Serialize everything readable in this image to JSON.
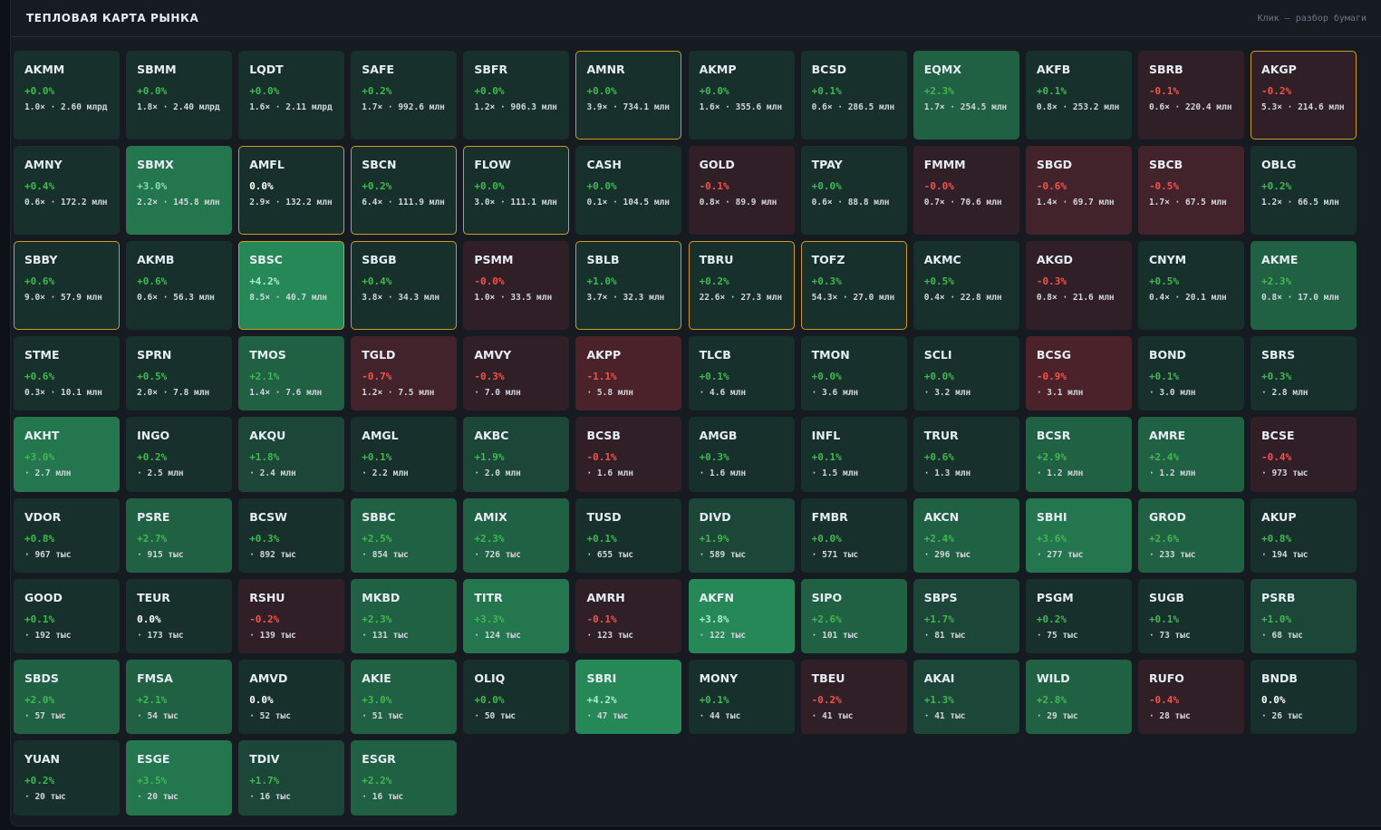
{
  "header": {
    "title": "ТЕПЛОВАЯ КАРТА РЫНКА",
    "hint": "Клик — разбор бумаги"
  },
  "colors": {
    "positive": "#3fb950",
    "negative": "#f85149",
    "highlight_border": "#d29922",
    "tile_neutral_green": "#1c3a32",
    "tile_strong_green": "#1f8a5a",
    "tile_red": "#3a1f25"
  },
  "tiles": [
    {
      "ticker": "AKMM",
      "change": "+0.0%",
      "volume": "1.0× · 2.60 млрд",
      "shade": 1,
      "dir": "pos",
      "hl": false
    },
    {
      "ticker": "SBMM",
      "change": "+0.0%",
      "volume": "1.8× · 2.40 млрд",
      "shade": 1,
      "dir": "pos",
      "hl": false
    },
    {
      "ticker": "LQDT",
      "change": "+0.0%",
      "volume": "1.6× · 2.11 млрд",
      "shade": 1,
      "dir": "pos",
      "hl": false
    },
    {
      "ticker": "SAFE",
      "change": "+0.2%",
      "volume": "1.7× · 992.6 млн",
      "shade": 1,
      "dir": "pos",
      "hl": false
    },
    {
      "ticker": "SBFR",
      "change": "+0.0%",
      "volume": "1.2× · 906.3 млн",
      "shade": 1,
      "dir": "pos",
      "hl": false
    },
    {
      "ticker": "AMNR",
      "change": "+0.0%",
      "volume": "3.9× · 734.1 млн",
      "shade": 1,
      "dir": "pos",
      "hl": true
    },
    {
      "ticker": "AKMP",
      "change": "+0.0%",
      "volume": "1.6× · 355.6 млн",
      "shade": 1,
      "dir": "pos",
      "hl": false
    },
    {
      "ticker": "BCSD",
      "change": "+0.1%",
      "volume": "0.6× · 286.5 млн",
      "shade": 1,
      "dir": "pos",
      "hl": false
    },
    {
      "ticker": "EQMX",
      "change": "+2.3%",
      "volume": "1.7× · 254.5 млн",
      "shade": 3,
      "dir": "pos",
      "hl": false
    },
    {
      "ticker": "AKFB",
      "change": "+0.1%",
      "volume": "0.8× · 253.2 млн",
      "shade": 1,
      "dir": "pos",
      "hl": false
    },
    {
      "ticker": "SBRB",
      "change": "-0.1%",
      "volume": "0.6× · 220.4 млн",
      "shade": -1,
      "dir": "neg",
      "hl": false
    },
    {
      "ticker": "AKGP",
      "change": "-0.2%",
      "volume": "5.3× · 214.6 млн",
      "shade": -1,
      "dir": "neg",
      "hl": true
    },
    {
      "ticker": "AMNY",
      "change": "+0.4%",
      "volume": "0.6× · 172.2 млн",
      "shade": 1,
      "dir": "pos",
      "hl": false
    },
    {
      "ticker": "SBMX",
      "change": "+3.0%",
      "volume": "2.2× · 145.8 млн",
      "shade": 4,
      "dir": "lite",
      "hl": false
    },
    {
      "ticker": "AMFL",
      "change": "0.0%",
      "volume": "2.9× · 132.2 млн",
      "shade": 1,
      "dir": "zero",
      "hl": true
    },
    {
      "ticker": "SBCN",
      "change": "+0.2%",
      "volume": "6.4× · 111.9 млн",
      "shade": 1,
      "dir": "pos",
      "hl": true
    },
    {
      "ticker": "FLOW",
      "change": "+0.0%",
      "volume": "3.0× · 111.1 млн",
      "shade": 1,
      "dir": "pos",
      "hl": true
    },
    {
      "ticker": "CASH",
      "change": "+0.0%",
      "volume": "0.1× · 104.5 млн",
      "shade": 1,
      "dir": "pos",
      "hl": false
    },
    {
      "ticker": "GOLD",
      "change": "-0.1%",
      "volume": "0.8× · 89.9 млн",
      "shade": -1,
      "dir": "neg",
      "hl": false
    },
    {
      "ticker": "TPAY",
      "change": "+0.0%",
      "volume": "0.6× · 88.8 млн",
      "shade": 1,
      "dir": "pos",
      "hl": false
    },
    {
      "ticker": "FMMM",
      "change": "-0.0%",
      "volume": "0.7× · 70.6 млн",
      "shade": -1,
      "dir": "neg",
      "hl": false
    },
    {
      "ticker": "SBGD",
      "change": "-0.6%",
      "volume": "1.4× · 69.7 млн",
      "shade": -2,
      "dir": "neg",
      "hl": false
    },
    {
      "ticker": "SBCB",
      "change": "-0.5%",
      "volume": "1.7× · 67.5 млн",
      "shade": -2,
      "dir": "neg",
      "hl": false
    },
    {
      "ticker": "OBLG",
      "change": "+0.2%",
      "volume": "1.2× · 66.5 млн",
      "shade": 1,
      "dir": "pos",
      "hl": false
    },
    {
      "ticker": "SBBY",
      "change": "+0.6%",
      "volume": "9.0× · 57.9 млн",
      "shade": 1,
      "dir": "pos",
      "hl": true
    },
    {
      "ticker": "AKMB",
      "change": "+0.6%",
      "volume": "0.6× · 56.3 млн",
      "shade": 1,
      "dir": "pos",
      "hl": false
    },
    {
      "ticker": "SBSC",
      "change": "+4.2%",
      "volume": "8.5× · 40.7 млн",
      "shade": 5,
      "dir": "pos",
      "hl": true
    },
    {
      "ticker": "SBGB",
      "change": "+0.4%",
      "volume": "3.8× · 34.3 млн",
      "shade": 1,
      "dir": "pos",
      "hl": true
    },
    {
      "ticker": "PSMM",
      "change": "-0.0%",
      "volume": "1.0× · 33.5 млн",
      "shade": -1,
      "dir": "neg",
      "hl": false
    },
    {
      "ticker": "SBLB",
      "change": "+1.0%",
      "volume": "3.7× · 32.3 млн",
      "shade": 1,
      "dir": "pos",
      "hl": true
    },
    {
      "ticker": "TBRU",
      "change": "+0.2%",
      "volume": "22.6× · 27.3 млн",
      "shade": 1,
      "dir": "pos",
      "hl": true
    },
    {
      "ticker": "TOFZ",
      "change": "+0.3%",
      "volume": "54.3× · 27.0 млн",
      "shade": 1,
      "dir": "pos",
      "hl": true
    },
    {
      "ticker": "AKMC",
      "change": "+0.5%",
      "volume": "0.4× · 22.8 млн",
      "shade": 1,
      "dir": "pos",
      "hl": false
    },
    {
      "ticker": "AKGD",
      "change": "-0.3%",
      "volume": "0.8× · 21.6 млн",
      "shade": -1,
      "dir": "neg",
      "hl": false
    },
    {
      "ticker": "CNYM",
      "change": "+0.5%",
      "volume": "0.4× · 20.1 млн",
      "shade": 1,
      "dir": "pos",
      "hl": false
    },
    {
      "ticker": "AKME",
      "change": "+2.3%",
      "volume": "0.8× · 17.0 млн",
      "shade": 3,
      "dir": "pos",
      "hl": false
    },
    {
      "ticker": "STME",
      "change": "+0.6%",
      "volume": "0.3× · 10.1 млн",
      "shade": 1,
      "dir": "pos",
      "hl": false
    },
    {
      "ticker": "SPRN",
      "change": "+0.5%",
      "volume": "2.0× · 7.8 млн",
      "shade": 1,
      "dir": "pos",
      "hl": false
    },
    {
      "ticker": "TMOS",
      "change": "+2.1%",
      "volume": "1.4× · 7.6 млн",
      "shade": 3,
      "dir": "pos",
      "hl": false
    },
    {
      "ticker": "TGLD",
      "change": "-0.7%",
      "volume": "1.2× · 7.5 млн",
      "shade": -2,
      "dir": "neg",
      "hl": false
    },
    {
      "ticker": "AMVY",
      "change": "-0.3%",
      "volume": "· 7.0 млн",
      "shade": -1,
      "dir": "neg",
      "hl": false
    },
    {
      "ticker": "AKPP",
      "change": "-1.1%",
      "volume": "· 5.8 млн",
      "shade": -3,
      "dir": "neg",
      "hl": false
    },
    {
      "ticker": "TLCB",
      "change": "+0.1%",
      "volume": "· 4.6 млн",
      "shade": 1,
      "dir": "pos",
      "hl": false
    },
    {
      "ticker": "TMON",
      "change": "+0.0%",
      "volume": "· 3.6 млн",
      "shade": 1,
      "dir": "pos",
      "hl": false
    },
    {
      "ticker": "SCLI",
      "change": "+0.0%",
      "volume": "· 3.2 млн",
      "shade": 1,
      "dir": "pos",
      "hl": false
    },
    {
      "ticker": "BCSG",
      "change": "-0.9%",
      "volume": "· 3.1 млн",
      "shade": -3,
      "dir": "neg",
      "hl": false
    },
    {
      "ticker": "BOND",
      "change": "+0.1%",
      "volume": "· 3.0 млн",
      "shade": 1,
      "dir": "pos",
      "hl": false
    },
    {
      "ticker": "SBRS",
      "change": "+0.3%",
      "volume": "· 2.8 млн",
      "shade": 1,
      "dir": "pos",
      "hl": false
    },
    {
      "ticker": "AKHT",
      "change": "+3.0%",
      "volume": "· 2.7 млн",
      "shade": 4,
      "dir": "pos",
      "hl": false
    },
    {
      "ticker": "INGO",
      "change": "+0.2%",
      "volume": "· 2.5 млн",
      "shade": 1,
      "dir": "pos",
      "hl": false
    },
    {
      "ticker": "AKQU",
      "change": "+1.8%",
      "volume": "· 2.4 млн",
      "shade": 2,
      "dir": "pos",
      "hl": false
    },
    {
      "ticker": "AMGL",
      "change": "+0.1%",
      "volume": "· 2.2 млн",
      "shade": 1,
      "dir": "pos",
      "hl": false
    },
    {
      "ticker": "AKBC",
      "change": "+1.9%",
      "volume": "· 2.0 млн",
      "shade": 2,
      "dir": "pos",
      "hl": false
    },
    {
      "ticker": "BCSB",
      "change": "-0.1%",
      "volume": "· 1.6 млн",
      "shade": -1,
      "dir": "neg",
      "hl": false
    },
    {
      "ticker": "AMGB",
      "change": "+0.3%",
      "volume": "· 1.6 млн",
      "shade": 1,
      "dir": "pos",
      "hl": false
    },
    {
      "ticker": "INFL",
      "change": "+0.1%",
      "volume": "· 1.5 млн",
      "shade": 1,
      "dir": "pos",
      "hl": false
    },
    {
      "ticker": "TRUR",
      "change": "+0.6%",
      "volume": "· 1.3 млн",
      "shade": 1,
      "dir": "pos",
      "hl": false
    },
    {
      "ticker": "BCSR",
      "change": "+2.9%",
      "volume": "· 1.2 млн",
      "shade": 3,
      "dir": "pos",
      "hl": false
    },
    {
      "ticker": "AMRE",
      "change": "+2.4%",
      "volume": "· 1.2 млн",
      "shade": 3,
      "dir": "pos",
      "hl": false
    },
    {
      "ticker": "BCSE",
      "change": "-0.4%",
      "volume": "· 973 тыс",
      "shade": -1,
      "dir": "neg",
      "hl": false
    },
    {
      "ticker": "VDOR",
      "change": "+0.8%",
      "volume": "· 967 тыс",
      "shade": 1,
      "dir": "pos",
      "hl": false
    },
    {
      "ticker": "PSRE",
      "change": "+2.7%",
      "volume": "· 915 тыс",
      "shade": 3,
      "dir": "pos",
      "hl": false
    },
    {
      "ticker": "BCSW",
      "change": "+0.3%",
      "volume": "· 892 тыс",
      "shade": 1,
      "dir": "pos",
      "hl": false
    },
    {
      "ticker": "SBBC",
      "change": "+2.5%",
      "volume": "· 854 тыс",
      "shade": 3,
      "dir": "pos",
      "hl": false
    },
    {
      "ticker": "AMIX",
      "change": "+2.3%",
      "volume": "· 726 тыс",
      "shade": 3,
      "dir": "pos",
      "hl": false
    },
    {
      "ticker": "TUSD",
      "change": "+0.1%",
      "volume": "· 655 тыс",
      "shade": 1,
      "dir": "pos",
      "hl": false
    },
    {
      "ticker": "DIVD",
      "change": "+1.9%",
      "volume": "· 589 тыс",
      "shade": 2,
      "dir": "pos",
      "hl": false
    },
    {
      "ticker": "FMBR",
      "change": "+0.0%",
      "volume": "· 571 тыс",
      "shade": 1,
      "dir": "pos",
      "hl": false
    },
    {
      "ticker": "AKCN",
      "change": "+2.4%",
      "volume": "· 296 тыс",
      "shade": 3,
      "dir": "pos",
      "hl": false
    },
    {
      "ticker": "SBHI",
      "change": "+3.6%",
      "volume": "· 277 тыс",
      "shade": 4,
      "dir": "pos",
      "hl": false
    },
    {
      "ticker": "GROD",
      "change": "+2.6%",
      "volume": "· 233 тыс",
      "shade": 3,
      "dir": "pos",
      "hl": false
    },
    {
      "ticker": "AKUP",
      "change": "+0.8%",
      "volume": "· 194 тыс",
      "shade": 1,
      "dir": "pos",
      "hl": false
    },
    {
      "ticker": "GOOD",
      "change": "+0.1%",
      "volume": "· 192 тыс",
      "shade": 1,
      "dir": "pos",
      "hl": false
    },
    {
      "ticker": "TEUR",
      "change": "0.0%",
      "volume": "· 173 тыс",
      "shade": 1,
      "dir": "zero",
      "hl": false
    },
    {
      "ticker": "RSHU",
      "change": "-0.2%",
      "volume": "· 139 тыс",
      "shade": -1,
      "dir": "neg",
      "hl": false
    },
    {
      "ticker": "MKBD",
      "change": "+2.3%",
      "volume": "· 131 тыс",
      "shade": 3,
      "dir": "pos",
      "hl": false
    },
    {
      "ticker": "TITR",
      "change": "+3.3%",
      "volume": "· 124 тыс",
      "shade": 4,
      "dir": "pos",
      "hl": false
    },
    {
      "ticker": "AMRH",
      "change": "-0.1%",
      "volume": "· 123 тыс",
      "shade": -1,
      "dir": "neg",
      "hl": false
    },
    {
      "ticker": "AKFN",
      "change": "+3.8%",
      "volume": "· 122 тыс",
      "shade": 5,
      "dir": "pos",
      "hl": false
    },
    {
      "ticker": "SIPO",
      "change": "+2.6%",
      "volume": "· 101 тыс",
      "shade": 3,
      "dir": "pos",
      "hl": false
    },
    {
      "ticker": "SBPS",
      "change": "+1.7%",
      "volume": "· 81 тыс",
      "shade": 2,
      "dir": "pos",
      "hl": false
    },
    {
      "ticker": "PSGM",
      "change": "+0.2%",
      "volume": "· 75 тыс",
      "shade": 1,
      "dir": "pos",
      "hl": false
    },
    {
      "ticker": "SUGB",
      "change": "+0.1%",
      "volume": "· 73 тыс",
      "shade": 1,
      "dir": "pos",
      "hl": false
    },
    {
      "ticker": "PSRB",
      "change": "+1.0%",
      "volume": "· 68 тыс",
      "shade": 2,
      "dir": "pos",
      "hl": false
    },
    {
      "ticker": "SBDS",
      "change": "+2.0%",
      "volume": "· 57 тыс",
      "shade": 3,
      "dir": "pos",
      "hl": false
    },
    {
      "ticker": "FMSA",
      "change": "+2.1%",
      "volume": "· 54 тыс",
      "shade": 3,
      "dir": "pos",
      "hl": false
    },
    {
      "ticker": "AMVD",
      "change": "0.0%",
      "volume": "· 52 тыс",
      "shade": 1,
      "dir": "zero",
      "hl": false
    },
    {
      "ticker": "AKIE",
      "change": "+3.0%",
      "volume": "· 51 тыс",
      "shade": 3,
      "dir": "pos",
      "hl": false
    },
    {
      "ticker": "OLIQ",
      "change": "+0.0%",
      "volume": "· 50 тыс",
      "shade": 1,
      "dir": "pos",
      "hl": false
    },
    {
      "ticker": "SBRI",
      "change": "+4.2%",
      "volume": "· 47 тыс",
      "shade": 5,
      "dir": "pos",
      "hl": false
    },
    {
      "ticker": "MONY",
      "change": "+0.1%",
      "volume": "· 44 тыс",
      "shade": 1,
      "dir": "pos",
      "hl": false
    },
    {
      "ticker": "TBEU",
      "change": "-0.2%",
      "volume": "· 41 тыс",
      "shade": -1,
      "dir": "neg",
      "hl": false
    },
    {
      "ticker": "AKAI",
      "change": "+1.3%",
      "volume": "· 41 тыс",
      "shade": 2,
      "dir": "pos",
      "hl": false
    },
    {
      "ticker": "WILD",
      "change": "+2.8%",
      "volume": "· 29 тыс",
      "shade": 3,
      "dir": "pos",
      "hl": false
    },
    {
      "ticker": "RUFO",
      "change": "-0.4%",
      "volume": "· 28 тыс",
      "shade": -1,
      "dir": "neg",
      "hl": false
    },
    {
      "ticker": "BNDB",
      "change": "0.0%",
      "volume": "· 26 тыс",
      "shade": 1,
      "dir": "zero",
      "hl": false
    },
    {
      "ticker": "YUAN",
      "change": "+0.2%",
      "volume": "· 20 тыс",
      "shade": 1,
      "dir": "pos",
      "hl": false
    },
    {
      "ticker": "ESGE",
      "change": "+3.5%",
      "volume": "· 20 тыс",
      "shade": 4,
      "dir": "pos",
      "hl": false
    },
    {
      "ticker": "TDIV",
      "change": "+1.7%",
      "volume": "· 16 тыс",
      "shade": 2,
      "dir": "pos",
      "hl": false
    },
    {
      "ticker": "ESGR",
      "change": "+2.2%",
      "volume": "· 16 тыс",
      "shade": 3,
      "dir": "pos",
      "hl": false
    }
  ]
}
